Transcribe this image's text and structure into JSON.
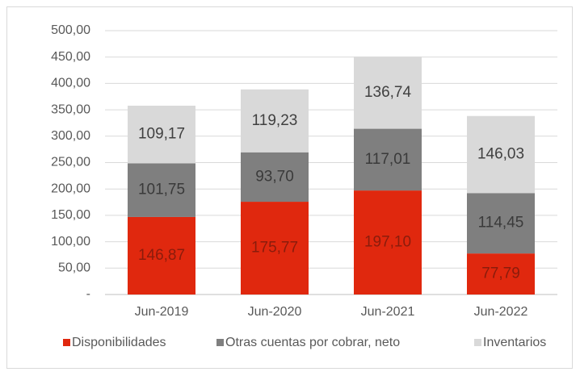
{
  "chart_data": {
    "type": "bar",
    "stacked": true,
    "categories": [
      "Jun-2019",
      "Jun-2020",
      "Jun-2021",
      "Jun-2022"
    ],
    "series": [
      {
        "name": "Disponibilidades",
        "color": "#e0280e",
        "label_color": "#8a1c0c",
        "values": [
          146.87,
          175.77,
          197.1,
          77.79
        ],
        "value_labels": [
          "146,87",
          "175,77",
          "197,10",
          "77,79"
        ]
      },
      {
        "name": "Otras cuentas por cobrar, neto",
        "color": "#7f7f7f",
        "label_color": "#3a3a3a",
        "values": [
          101.75,
          93.7,
          117.01,
          114.45
        ],
        "value_labels": [
          "101,75",
          "93,70",
          "117,01",
          "114,45"
        ]
      },
      {
        "name": "Inventarios",
        "color": "#d9d9d9",
        "label_color": "#404040",
        "values": [
          109.17,
          119.23,
          136.74,
          146.03
        ],
        "value_labels": [
          "109,17",
          "119,23",
          "136,74",
          "146,03"
        ]
      }
    ],
    "ylim": [
      0,
      500
    ],
    "yticks": [
      {
        "value": 0,
        "label": "-"
      },
      {
        "value": 50,
        "label": "50,00"
      },
      {
        "value": 100,
        "label": "100,00"
      },
      {
        "value": 150,
        "label": "150,00"
      },
      {
        "value": 200,
        "label": "200,00"
      },
      {
        "value": 250,
        "label": "250,00"
      },
      {
        "value": 300,
        "label": "300,00"
      },
      {
        "value": 350,
        "label": "350,00"
      },
      {
        "value": 400,
        "label": "400,00"
      },
      {
        "value": 450,
        "label": "450,00"
      },
      {
        "value": 500,
        "label": "500,00"
      }
    ],
    "grid": true,
    "legend": "bottom"
  }
}
